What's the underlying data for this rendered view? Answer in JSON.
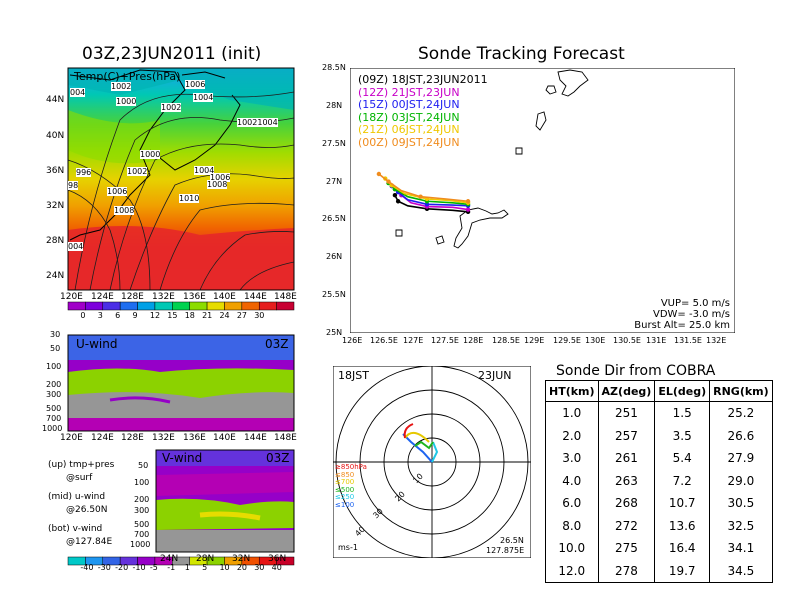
{
  "map_title": "03Z,23JUN2011 (init)",
  "map_label": "Temp(C)+Pres(hPa)",
  "map_y_ticks": [
    "44N",
    "40N",
    "36N",
    "32N",
    "28N",
    "24N"
  ],
  "x_ticks_lon": [
    "120E",
    "124E",
    "128E",
    "132E",
    "136E",
    "140E",
    "144E",
    "148E"
  ],
  "isobar_labels": [
    {
      "id": "a",
      "text": "004"
    },
    {
      "id": "b",
      "text": "1002"
    },
    {
      "id": "c",
      "text": "1006"
    },
    {
      "id": "d",
      "text": "1000"
    },
    {
      "id": "e",
      "text": "1004"
    },
    {
      "id": "f",
      "text": "1002"
    },
    {
      "id": "g",
      "text": "10021004"
    },
    {
      "id": "h",
      "text": "1000"
    },
    {
      "id": "i",
      "text": "996"
    },
    {
      "id": "j",
      "text": "1002"
    },
    {
      "id": "k",
      "text": "1004"
    },
    {
      "id": "l",
      "text": "98"
    },
    {
      "id": "m",
      "text": "1006"
    },
    {
      "id": "n",
      "text": "1006"
    },
    {
      "id": "o",
      "text": "1008"
    },
    {
      "id": "p",
      "text": "1010"
    },
    {
      "id": "q",
      "text": "1008"
    },
    {
      "id": "r",
      "text": "004"
    }
  ],
  "temp_colorbar": {
    "labels": [
      "0",
      "3",
      "6",
      "9",
      "12",
      "15",
      "18",
      "21",
      "24",
      "27",
      "30"
    ],
    "colors": [
      "#a000c8",
      "#7d00dc",
      "#4b2ee6",
      "#1e6ef0",
      "#00a0e6",
      "#00c8b4",
      "#00d250",
      "#8cdc00",
      "#e6dc00",
      "#f0a000",
      "#f06400",
      "#e61e1e",
      "#c80032"
    ]
  },
  "u_panel": {
    "label": "U-wind",
    "time": "03Z",
    "y_ticks": [
      "30",
      "50",
      "100",
      "200",
      "300",
      "500",
      "700",
      "1000"
    ],
    "x_ticks": [
      "120E",
      "124E",
      "128E",
      "132E",
      "136E",
      "140E",
      "144E",
      "148E"
    ]
  },
  "v_panel": {
    "label": "V-wind",
    "time": "03Z",
    "y_ticks": [
      "50",
      "100",
      "200",
      "300",
      "500",
      "700",
      "1000"
    ],
    "x_ticks": [
      "24N",
      "28N",
      "32N",
      "36N"
    ]
  },
  "legend_notes": [
    "(up) tmp+pres",
    "@surf",
    "(mid) u-wind",
    "@26.50N",
    "(bot) v-wind",
    "@127.84E"
  ],
  "wind_colorbar": {
    "labels": [
      "-40",
      "-30",
      "-20",
      "-10",
      "-5",
      "-1",
      "1",
      "5",
      "10",
      "20",
      "30",
      "40"
    ],
    "colors": [
      "#00c8c8",
      "#1e96f0",
      "#3264e6",
      "#6432dc",
      "#9600c8",
      "#b400b4",
      "#969696",
      "#d2e600",
      "#8cd200",
      "#f0a000",
      "#f05000",
      "#e61414",
      "#c80028"
    ]
  },
  "track_title": "Sonde Tracking Forecast",
  "track_legend": [
    {
      "label": "(09Z)  18JST,23JUN2011",
      "color": "#000000"
    },
    {
      "label": "(12Z)  21JST,23JUN",
      "color": "#c800c8"
    },
    {
      "label": "(15Z)  00JST,24JUN",
      "color": "#1e1ef0"
    },
    {
      "label": "(18Z)  03JST,24JUN",
      "color": "#00b400"
    },
    {
      "label": "(21Z)  06JST,24JUN",
      "color": "#f0c800"
    },
    {
      "label": "(00Z)  09JST,24JUN",
      "color": "#f08c1e"
    }
  ],
  "track_params": [
    "VUP=  5.0  m/s",
    "VDW= -3.0  m/s",
    "Burst Alt=  25.0  km"
  ],
  "chart_data": {
    "type": "line",
    "title": "Sonde Tracking Forecast",
    "xlim": [
      126,
      132
    ],
    "ylim": [
      25,
      28.5
    ],
    "x_ticks": [
      "126E",
      "126.5E",
      "127E",
      "127.5E",
      "128E",
      "128.5E",
      "129E",
      "129.5E",
      "130E",
      "130.5E",
      "131E",
      "131.5E",
      "132E"
    ],
    "y_ticks": [
      "25N",
      "25.5N",
      "26N",
      "26.5N",
      "27N",
      "27.5N",
      "28N",
      "28.5N"
    ],
    "series": [
      {
        "name": "(09Z)  18JST,23JUN2011",
        "color": "#000000",
        "x": [
          127.84,
          127.6,
          127.2,
          126.9,
          126.75,
          126.7
        ],
        "y": [
          26.6,
          26.62,
          26.64,
          26.68,
          26.74,
          26.82
        ]
      },
      {
        "name": "(12Z)  21JST,23JUN",
        "color": "#c800c8",
        "x": [
          127.84,
          127.6,
          127.2,
          126.95,
          126.8,
          126.7
        ],
        "y": [
          26.63,
          26.66,
          26.67,
          26.72,
          26.82,
          26.9
        ]
      },
      {
        "name": "(15Z)  00JST,24JUN",
        "color": "#1e1ef0",
        "x": [
          127.84,
          127.6,
          127.2,
          126.9,
          126.75,
          126.65
        ],
        "y": [
          26.68,
          26.69,
          26.7,
          26.76,
          26.86,
          26.94
        ]
      },
      {
        "name": "(18Z)  03JST,24JUN",
        "color": "#00b400",
        "x": [
          127.84,
          127.6,
          127.2,
          126.9,
          126.7,
          126.6
        ],
        "y": [
          26.7,
          26.72,
          26.74,
          26.8,
          26.9,
          26.98
        ]
      },
      {
        "name": "(21Z)  06JST,24JUN",
        "color": "#f0c800",
        "x": [
          127.84,
          127.55,
          127.2,
          126.85,
          126.65,
          126.55
        ],
        "y": [
          26.72,
          26.75,
          26.77,
          26.84,
          26.95,
          27.04
        ]
      },
      {
        "name": "(00Z)  09JST,24JUN",
        "color": "#f08c1e",
        "x": [
          127.84,
          127.5,
          127.1,
          126.8,
          126.6,
          126.45
        ],
        "y": [
          26.74,
          26.77,
          26.8,
          26.88,
          27.0,
          27.1
        ]
      }
    ]
  },
  "polar": {
    "left_label": "18JST",
    "right_label": "23JUN",
    "bottom_left": "ms-1",
    "coord1": "26.5N",
    "coord2": "127.875E",
    "ring_labels": [
      "10",
      "20",
      "30",
      "40"
    ],
    "level_legend": [
      {
        "text": "≥850hPa",
        "color": "#e61414"
      },
      {
        "text": "≤850",
        "color": "#f08c1e"
      },
      {
        "text": "≤700",
        "color": "#e6c800"
      },
      {
        "text": "≤500",
        "color": "#1eb41e"
      },
      {
        "text": "≤250",
        "color": "#1ec8e6"
      },
      {
        "text": "≤100",
        "color": "#1e64f0"
      }
    ]
  },
  "sonde_table": {
    "title": "Sonde Dir from COBRA",
    "headers": [
      "HT(km)",
      "AZ(deg)",
      "EL(deg)",
      "RNG(km)"
    ],
    "rows": [
      [
        "1.0",
        "251",
        "1.5",
        "25.2"
      ],
      [
        "2.0",
        "257",
        "3.5",
        "26.6"
      ],
      [
        "3.0",
        "261",
        "5.4",
        "27.9"
      ],
      [
        "4.0",
        "263",
        "7.2",
        "29.0"
      ],
      [
        "6.0",
        "268",
        "10.7",
        "30.5"
      ],
      [
        "8.0",
        "272",
        "13.6",
        "32.5"
      ],
      [
        "10.0",
        "275",
        "16.4",
        "34.1"
      ],
      [
        "12.0",
        "278",
        "19.7",
        "34.5"
      ]
    ]
  }
}
